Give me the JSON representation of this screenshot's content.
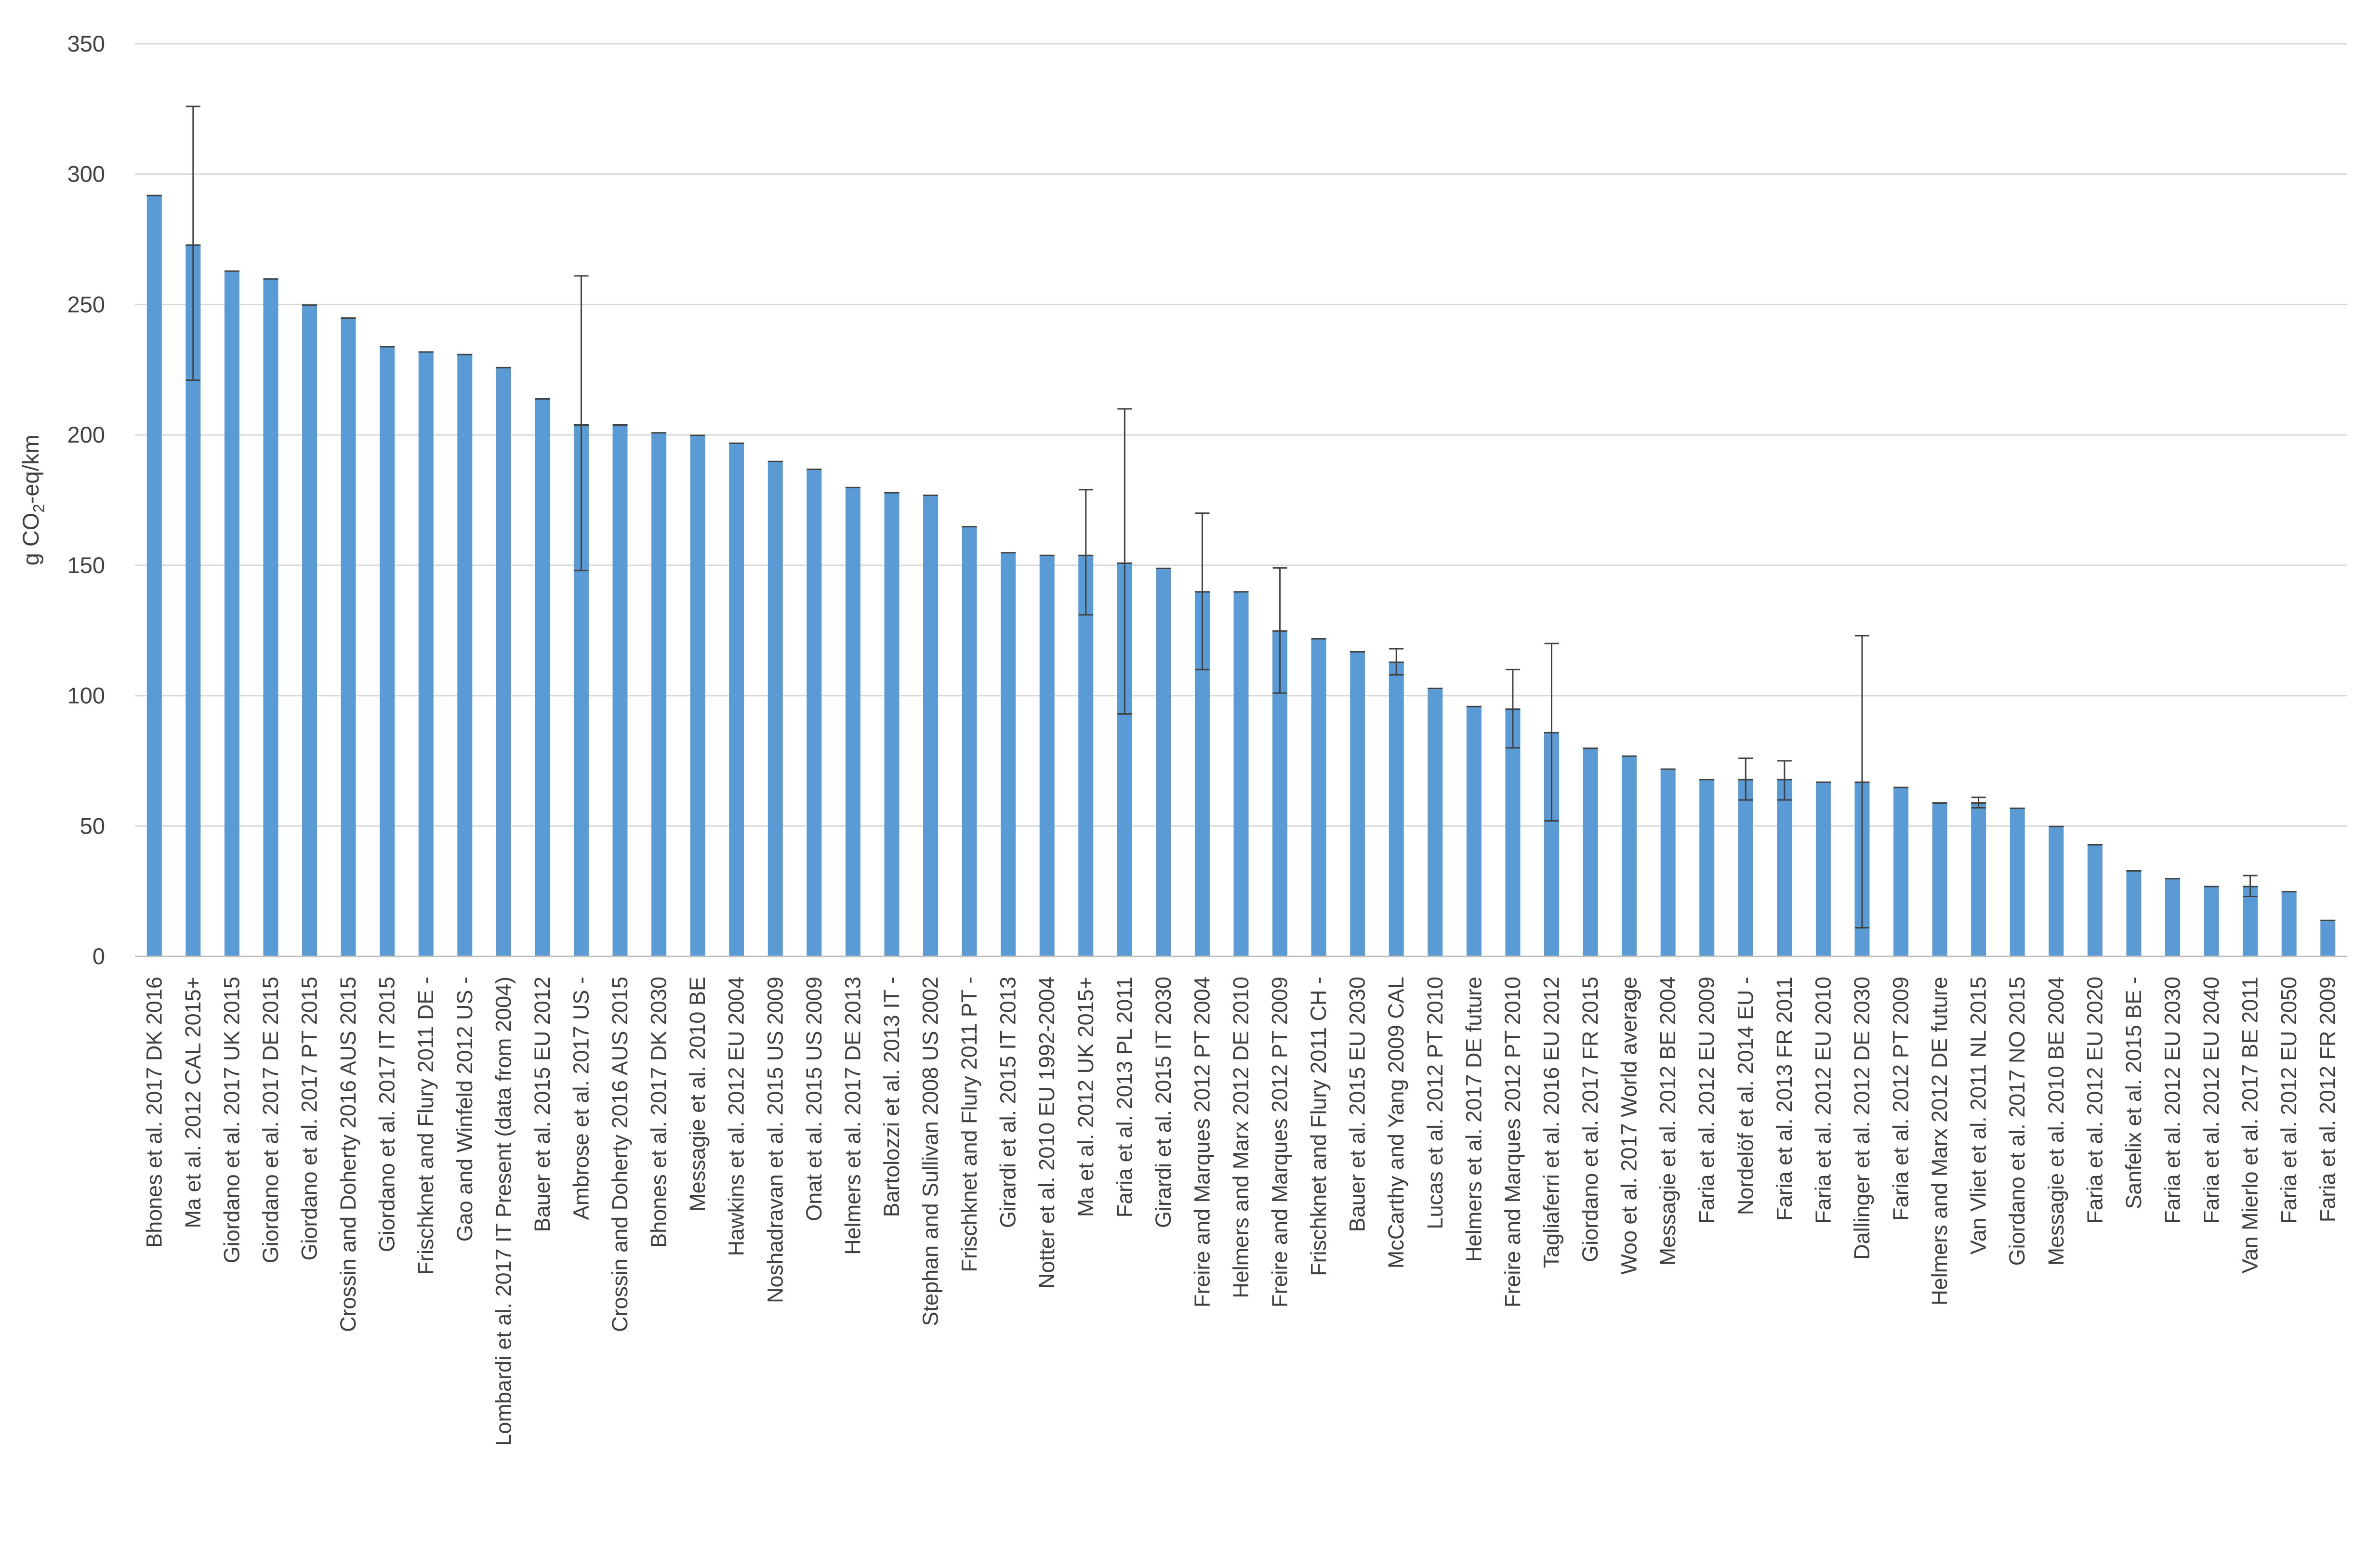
{
  "colors": {
    "bar": "#5b9bd5",
    "grid": "#d9d9d9",
    "axis": "#bfbfbf",
    "error_bar": "#404040",
    "text": "#404040"
  },
  "chart_data": {
    "type": "bar",
    "ylabel_prefix": "g CO",
    "ylabel_sub": "2",
    "ylabel_suffix": "-eq/km",
    "ylim": [
      0,
      350
    ],
    "yticks": [
      "0",
      "50",
      "100",
      "150",
      "200",
      "250",
      "300",
      "350"
    ],
    "grid": true,
    "legend": "none",
    "categories": [
      "Bhones et al. 2017 DK 2016",
      "Ma et al. 2012 CAL 2015+",
      "Giordano et al. 2017 UK 2015",
      "Giordano et al. 2017 DE 2015",
      "Giordano et al. 2017 PT 2015",
      "Crossin and Doherty 2016 AUS 2015",
      "Giordano et al. 2017 IT 2015",
      "Frischknet and Flury 2011 DE -",
      "Gao and Winfeld 2012 US -",
      "Lombardi et al. 2017 IT Present (data from 2004)",
      "Bauer et al. 2015 EU 2012",
      "Ambrose et al. 2017 US -",
      "Crossin and Doherty 2016 AUS 2015",
      "Bhones et al. 2017 DK 2030",
      "Messagie et al. 2010 BE",
      "Hawkins et al. 2012 EU 2004",
      "Noshadravan et al. 2015 US 2009",
      "Onat et al. 2015 US 2009",
      "Helmers et al. 2017 DE 2013",
      "Bartolozzi et al. 2013 IT -",
      "Stephan and Sullivan 2008 US 2002",
      "Frischknet and Flury 2011 PT -",
      "Girardi et al. 2015 IT 2013",
      "Notter et al. 2010 EU 1992-2004",
      "Ma et al. 2012 UK 2015+",
      "Faria et al. 2013 PL 2011",
      "Girardi et al. 2015 IT 2030",
      "Freire and Marques 2012 PT 2004",
      "Helmers and Marx 2012 DE 2010",
      "Freire and Marques 2012 PT 2009",
      "Frischknet and Flury 2011 CH -",
      "Bauer et al. 2015 EU 2030",
      "McCarthy and Yang 2009 CAL",
      "Lucas et al. 2012 PT 2010",
      "Helmers et al. 2017 DE future",
      "Freire and Marques 2012 PT 2010",
      "Tagliaferri et al. 2016 EU 2012",
      "Giordano et al. 2017 FR 2015",
      "Woo et al. 2017 World average",
      "Messagie et al. 2012 BE 2004",
      "Faria et al. 2012 EU 2009",
      "Nordelöf et al. 2014 EU -",
      "Faria et al. 2013 FR 2011",
      "Faria et al. 2012 EU 2010",
      "Dallinger et al. 2012 DE 2030",
      "Faria et al. 2012 PT 2009",
      "Helmers and Marx 2012 DE future",
      "Van Vliet et al. 2011 NL 2015",
      "Giordano et al. 2017 NO 2015",
      "Messagie et al. 2010 BE 2004",
      "Faria et al. 2012 EU 2020",
      "Sanfelix et al. 2015 BE -",
      "Faria et al. 2012 EU 2030",
      "Faria et al. 2012 EU 2040",
      "Van Mierlo et al. 2017 BE 2011",
      "Faria et al. 2012 EU 2050",
      "Faria et al. 2012 FR 2009"
    ],
    "series": [
      {
        "values": [
          292,
          273,
          263,
          260,
          250,
          245,
          234,
          232,
          231,
          226,
          214,
          204,
          204,
          201,
          200,
          197,
          190,
          187,
          180,
          178,
          177,
          165,
          155,
          154,
          154,
          151,
          149,
          140,
          140,
          125,
          122,
          117,
          113,
          103,
          96,
          95,
          86,
          80,
          77,
          72,
          68,
          68,
          68,
          67,
          67,
          65,
          59,
          59,
          57,
          50,
          43,
          33,
          30,
          27,
          27,
          25,
          14
        ],
        "error_low": [
          null,
          221,
          null,
          null,
          null,
          null,
          null,
          null,
          null,
          null,
          null,
          148,
          null,
          null,
          null,
          null,
          null,
          null,
          null,
          null,
          null,
          null,
          null,
          null,
          131,
          93,
          null,
          110,
          null,
          101,
          null,
          null,
          108,
          null,
          null,
          80,
          52,
          null,
          null,
          null,
          null,
          60,
          60,
          null,
          11,
          null,
          null,
          57,
          null,
          null,
          null,
          null,
          null,
          null,
          23,
          null,
          null
        ],
        "error_high": [
          null,
          326,
          null,
          null,
          null,
          null,
          null,
          null,
          null,
          null,
          null,
          261,
          null,
          null,
          null,
          null,
          null,
          null,
          null,
          null,
          null,
          null,
          null,
          null,
          179,
          210,
          null,
          170,
          null,
          149,
          null,
          null,
          118,
          null,
          null,
          110,
          120,
          null,
          null,
          null,
          null,
          76,
          75,
          null,
          123,
          null,
          null,
          61,
          null,
          null,
          null,
          null,
          null,
          null,
          31,
          null,
          null
        ]
      }
    ]
  }
}
